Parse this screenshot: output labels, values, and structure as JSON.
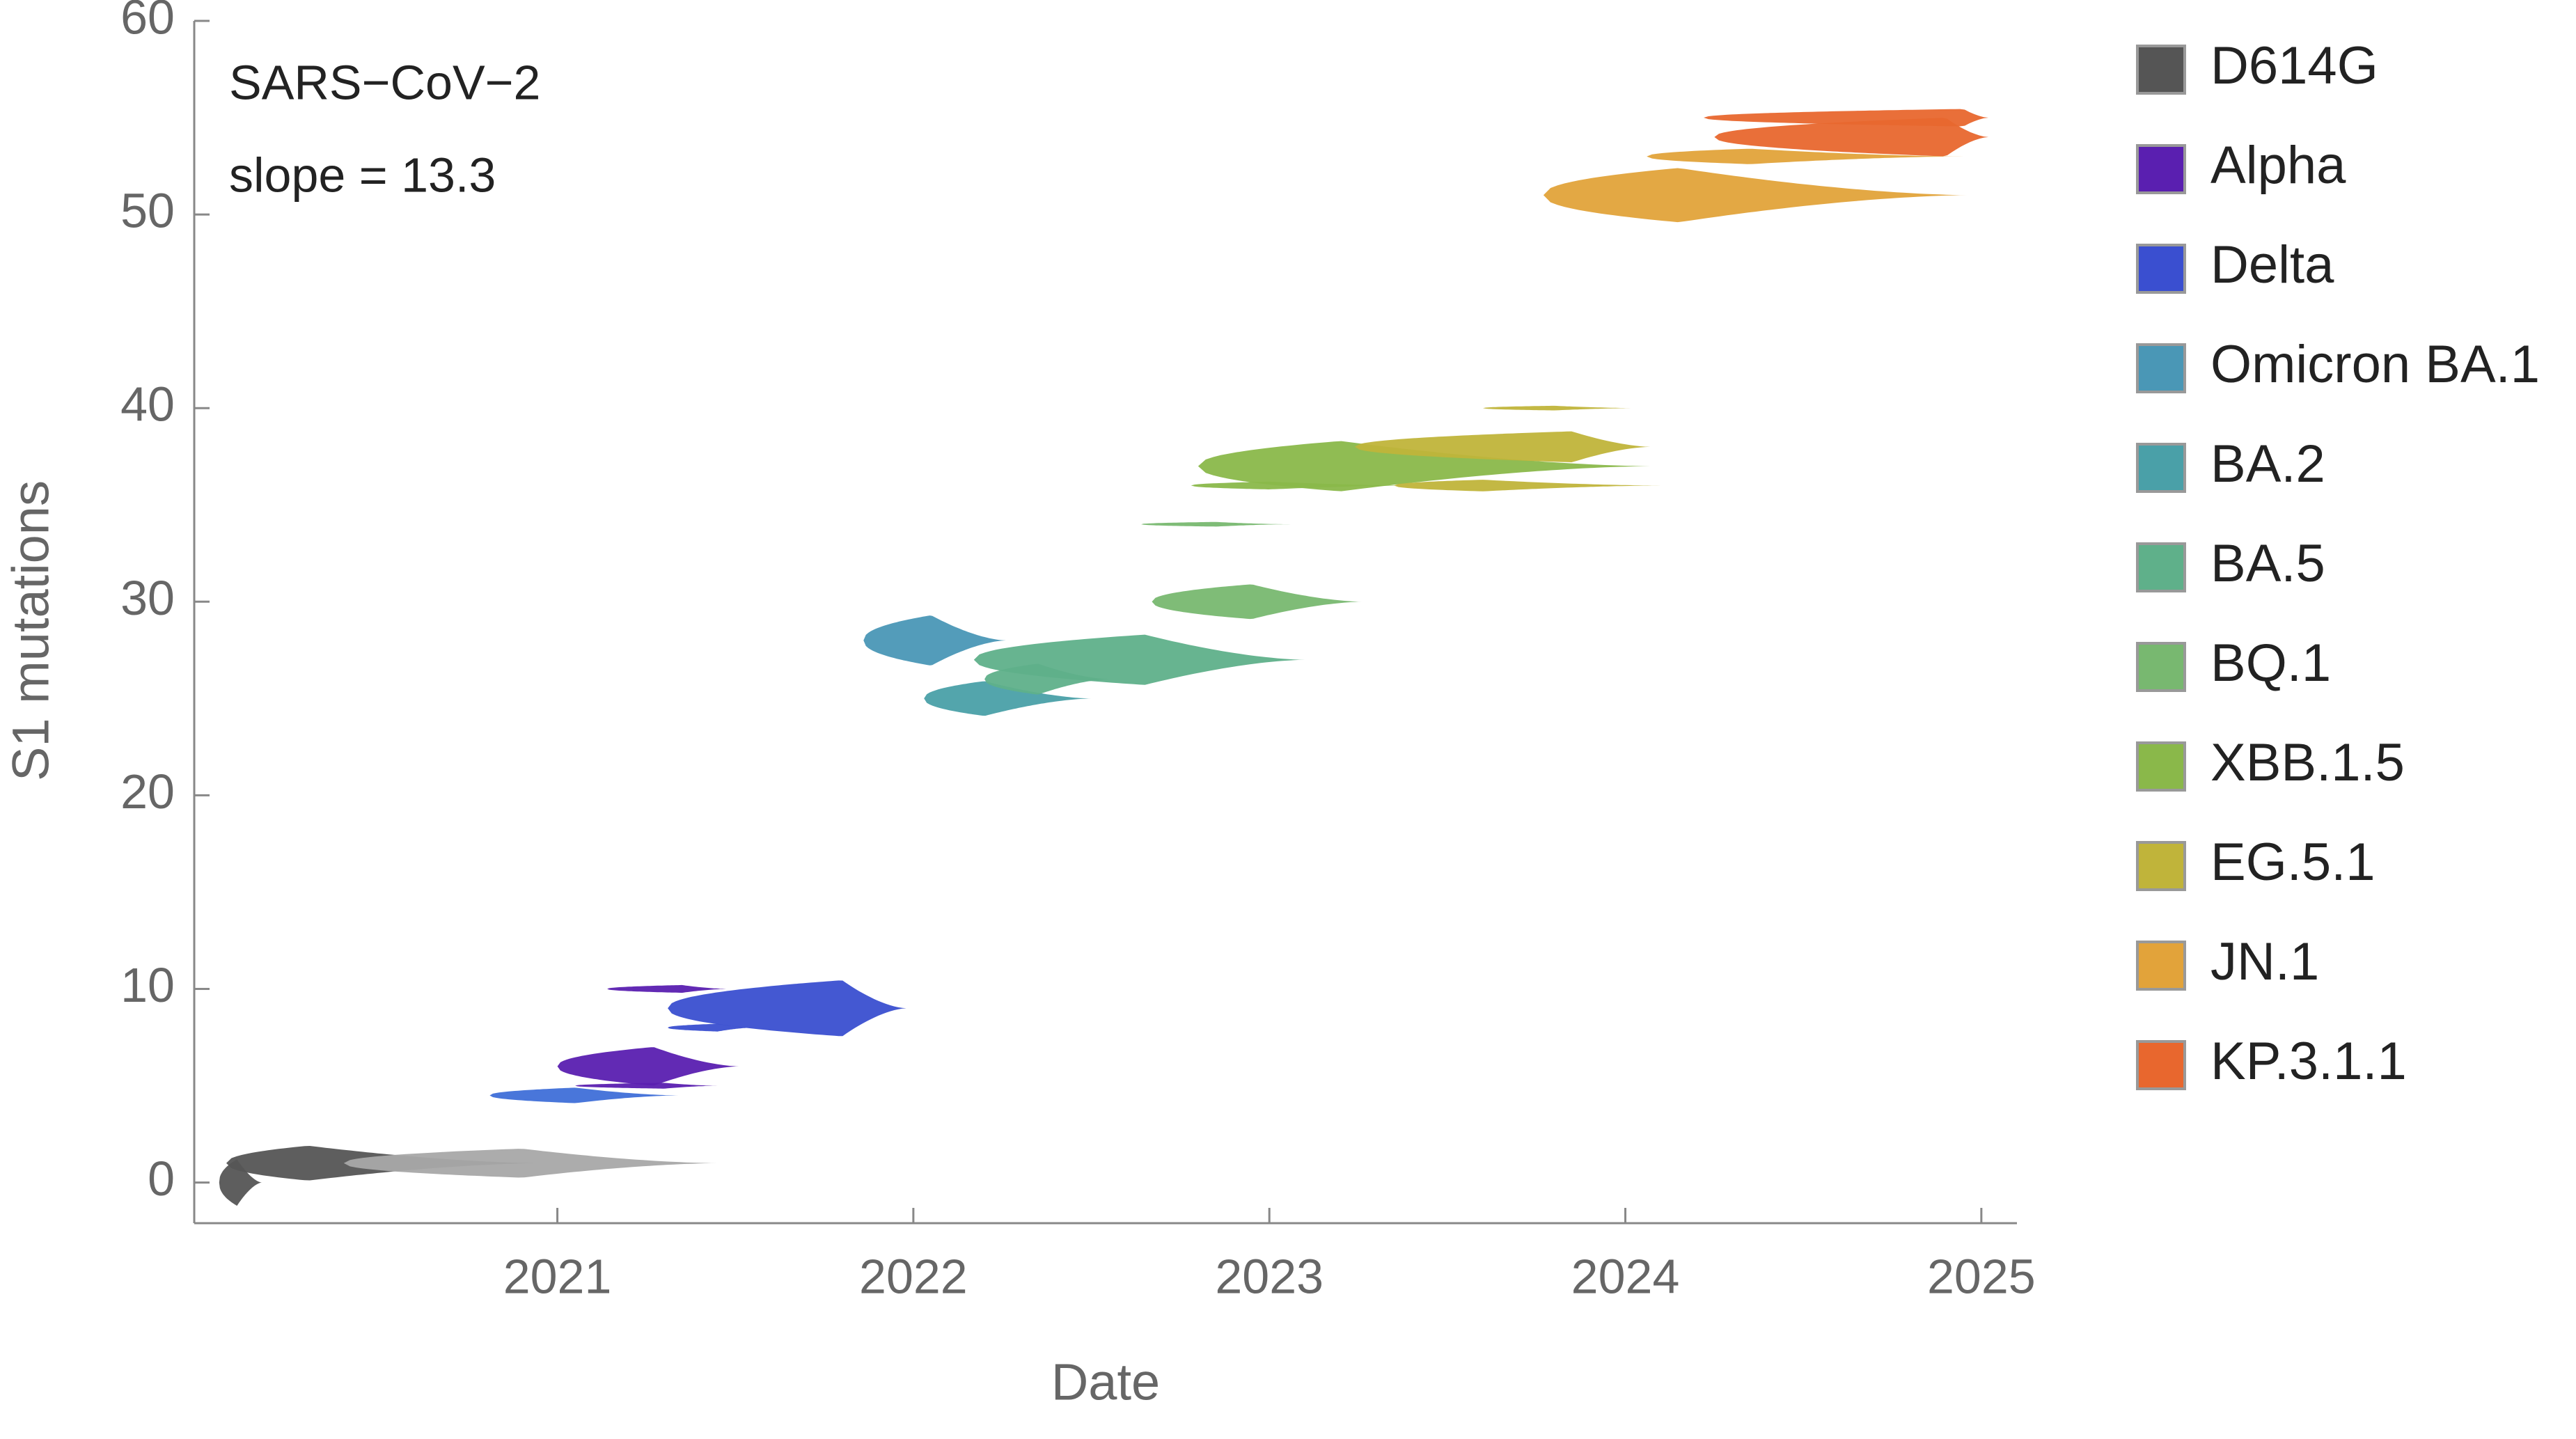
{
  "chart_data": {
    "type": "lineage-ridge",
    "annotations": [
      "SARS−CoV−2",
      "slope = 13.3"
    ],
    "x_label": "Date",
    "y_label": "S1 mutations",
    "xlim": [
      2019.98,
      2025.1
    ],
    "xticks": [
      2021,
      2022,
      2023,
      2024,
      2025
    ],
    "ylim": [
      -2.1,
      60
    ],
    "yticks": [
      0,
      10,
      20,
      30,
      40,
      50,
      60
    ],
    "legend": "right",
    "series": [
      {
        "name": "D614G",
        "color": "#555555",
        "segments": [
          {
            "y": 0,
            "start": 2020.05,
            "peak": 2020.1,
            "end": 2020.17,
            "height": 1.2
          },
          {
            "y": 1,
            "start": 2020.07,
            "peak": 2020.3,
            "end": 2020.95,
            "height": 0.9
          },
          {
            "y": 1,
            "start": 2020.4,
            "peak": 2020.9,
            "end": 2021.45,
            "height": 0.75,
            "color": "#a8a8a8"
          }
        ]
      },
      {
        "name": "Alpha",
        "color": "#5a1fb0",
        "segments": [
          {
            "y": 6,
            "start": 2021.0,
            "peak": 2021.27,
            "end": 2021.51,
            "height": 1.0
          },
          {
            "y": 10,
            "start": 2021.14,
            "peak": 2021.35,
            "end": 2021.48,
            "height": 0.2
          },
          {
            "y": 5,
            "start": 2021.05,
            "peak": 2021.3,
            "end": 2021.45,
            "height": 0.15
          }
        ]
      },
      {
        "name": "Delta",
        "color": "#3a4fd0",
        "segments": [
          {
            "y": 9,
            "start": 2021.31,
            "peak": 2021.8,
            "end": 2021.98,
            "height": 1.45
          },
          {
            "y": 8,
            "start": 2021.31,
            "peak": 2021.45,
            "end": 2021.55,
            "height": 0.2
          },
          {
            "y": 4.5,
            "start": 2020.81,
            "peak": 2021.05,
            "end": 2021.34,
            "height": 0.4,
            "color": "#3f6fd8"
          }
        ]
      },
      {
        "name": "Omicron BA.1",
        "color": "#4a97b6",
        "segments": [
          {
            "y": 28,
            "start": 2021.86,
            "peak": 2022.05,
            "end": 2022.26,
            "height": 1.3
          }
        ]
      },
      {
        "name": "BA.2",
        "color": "#4aa0a8",
        "segments": [
          {
            "y": 25,
            "start": 2022.03,
            "peak": 2022.2,
            "end": 2022.5,
            "height": 0.9
          }
        ]
      },
      {
        "name": "BA.5",
        "color": "#5fb08a",
        "segments": [
          {
            "y": 27,
            "start": 2022.17,
            "peak": 2022.65,
            "end": 2023.1,
            "height": 1.3
          },
          {
            "y": 26,
            "start": 2022.2,
            "peak": 2022.35,
            "end": 2022.55,
            "height": 0.8
          }
        ]
      },
      {
        "name": "BQ.1",
        "color": "#78b870",
        "segments": [
          {
            "y": 30,
            "start": 2022.67,
            "peak": 2022.95,
            "end": 2023.26,
            "height": 0.9
          },
          {
            "y": 34,
            "start": 2022.64,
            "peak": 2022.85,
            "end": 2023.06,
            "height": 0.12
          }
        ]
      },
      {
        "name": "XBB.1.5",
        "color": "#8ab84a",
        "segments": [
          {
            "y": 37,
            "start": 2022.8,
            "peak": 2023.2,
            "end": 2024.07,
            "height": 1.3
          },
          {
            "y": 36,
            "start": 2022.78,
            "peak": 2023.0,
            "end": 2023.4,
            "height": 0.2
          }
        ]
      },
      {
        "name": "EG.5.1",
        "color": "#c0b43a",
        "segments": [
          {
            "y": 38,
            "start": 2023.24,
            "peak": 2023.85,
            "end": 2024.07,
            "height": 0.8
          },
          {
            "y": 36,
            "start": 2023.35,
            "peak": 2023.6,
            "end": 2024.1,
            "height": 0.3
          },
          {
            "y": 40,
            "start": 2023.6,
            "peak": 2023.8,
            "end": 2024.03,
            "height": 0.12
          }
        ]
      },
      {
        "name": "JN.1",
        "color": "#e2a33a",
        "segments": [
          {
            "y": 51,
            "start": 2023.77,
            "peak": 2024.15,
            "end": 2024.96,
            "height": 1.4
          },
          {
            "y": 53,
            "start": 2024.06,
            "peak": 2024.35,
            "end": 2024.95,
            "height": 0.4
          }
        ]
      },
      {
        "name": "KP.3.1.1",
        "color": "#e8672e",
        "segments": [
          {
            "y": 54,
            "start": 2024.25,
            "peak": 2024.9,
            "end": 2025.02,
            "height": 1.0
          },
          {
            "y": 55,
            "start": 2024.22,
            "peak": 2024.95,
            "end": 2025.02,
            "height": 0.45
          }
        ]
      }
    ]
  }
}
